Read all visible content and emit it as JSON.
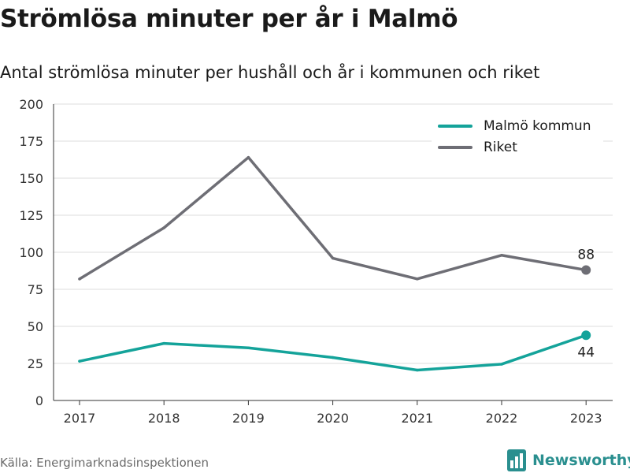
{
  "title": "Strömlösa minuter per år i Malmö",
  "subtitle": "Antal strömlösa minuter per hushåll och år i kommunen och riket",
  "source": "Källa: Energimarknadsinspektionen",
  "brand": {
    "name": "Newsworthy",
    "icon": "bar-chart-logo-icon"
  },
  "chart_data": {
    "type": "line",
    "title": "Strömlösa minuter per år i Malmö",
    "subtitle": "Antal strömlösa minuter per hushåll och år i kommunen och riket",
    "x": [
      "2017",
      "2018",
      "2019",
      "2020",
      "2021",
      "2022",
      "2023"
    ],
    "ylim": [
      0,
      200
    ],
    "yticks": [
      "0",
      "25",
      "50",
      "75",
      "100",
      "125",
      "150",
      "175",
      "200"
    ],
    "grid": true,
    "legend_position": "top-right",
    "series": [
      {
        "name": "Malmö kommun",
        "color": "#14a39a",
        "values": [
          26.5,
          38.5,
          35.5,
          29,
          20.5,
          24.5,
          44
        ],
        "end_label": "44"
      },
      {
        "name": "Riket",
        "color": "#6e6e75",
        "values": [
          82,
          116.5,
          164,
          96,
          82,
          98,
          88
        ],
        "end_label": "88"
      }
    ]
  }
}
